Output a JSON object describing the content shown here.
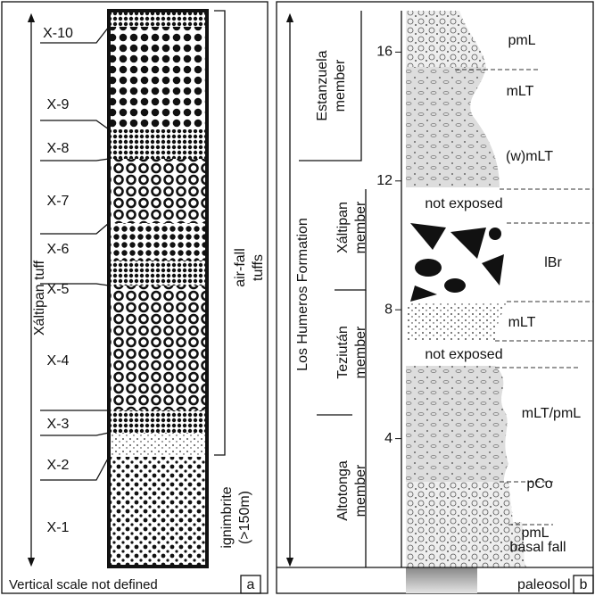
{
  "panel_a": {
    "layers": [
      "X-10",
      "X-9",
      "X-8",
      "X-7",
      "X-6",
      "X-5",
      "X-4",
      "X-3",
      "X-2",
      "X-1"
    ],
    "unit_label": "Xáltipan tuff",
    "airfall_label": [
      "air-fall",
      "tuffs"
    ],
    "ignimbrite_label": [
      "ignimbrite",
      "(>150m)"
    ],
    "caption": "Vertical scale not defined",
    "panel_letter": "a"
  },
  "panel_b": {
    "scale_ticks": [
      16,
      12,
      8,
      4
    ],
    "formation": "Los Humeros Formation",
    "members": [
      {
        "lines": [
          "Estanzuela",
          "member"
        ]
      },
      {
        "lines": [
          "Xáltipan",
          "member"
        ]
      },
      {
        "lines": [
          "Teziután",
          "member"
        ]
      },
      {
        "lines": [
          "Altotonga",
          "member"
        ]
      }
    ],
    "units": [
      "pmL",
      "mLT",
      "(w)mLT",
      "not exposed",
      "lBr",
      "mLT",
      "not exposed",
      "mLT/pmL",
      "pCo",
      "pmL",
      "basal fall",
      "paleosol"
    ],
    "panel_letter": "b"
  }
}
